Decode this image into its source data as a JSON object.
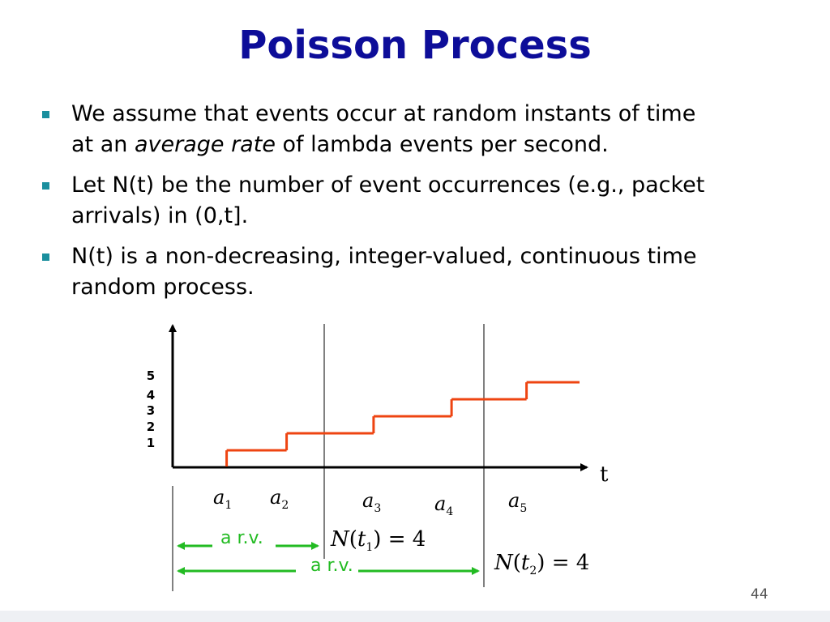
{
  "slide": {
    "title": "Poisson Process",
    "bullets": [
      {
        "line1": "We assume that events occur at random instants of time",
        "line2_prefix": "at an ",
        "line2_emph": "average rate",
        "line2_suffix": " of lambda events per second."
      },
      {
        "line1": "Let N(t) be the number of event occurrences (e.g., packet",
        "line2": "arrivals) in (0,t]."
      },
      {
        "line1": "N(t) is a non-decreasing, integer-valued, continuous time",
        "line2": "random process."
      }
    ],
    "page_number": "44"
  },
  "diagram": {
    "y_tick_labels": [
      "5",
      "4",
      "3",
      "2",
      "1"
    ],
    "t_axis_label": "t",
    "arrival_symbol": "a",
    "arrival_indices": [
      "1",
      "2",
      "3",
      "4",
      "5"
    ],
    "rv_label_1": "a r.v.",
    "rv_label_2": "a r.v.",
    "n_t1": {
      "N": "N",
      "open": "(",
      "t": "t",
      "sub": "1",
      "rest": ") = 4"
    },
    "n_t2": {
      "N": "N",
      "open": "(",
      "t": "t",
      "sub": "2",
      "rest": ") = 4"
    },
    "colors": {
      "step": "#ee4411",
      "arrow": "#22bb22",
      "title": "#0d0d99",
      "bullet": "#1a8f9e"
    },
    "arrival_times_relative": [
      0.18,
      0.38,
      0.67,
      0.93,
      1.18
    ],
    "count_levels": [
      0,
      1,
      2,
      3,
      4,
      5
    ]
  }
}
